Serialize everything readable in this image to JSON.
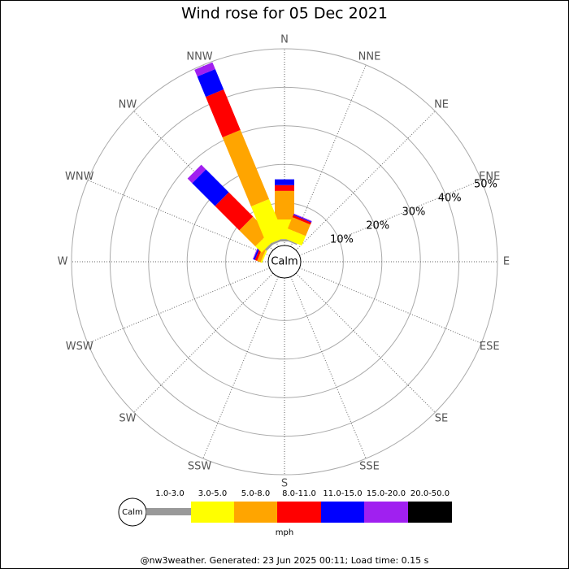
{
  "chart_data": {
    "type": "windrose",
    "title": "Wind rose for 05 Dec 2021",
    "directions": [
      "N",
      "NNE",
      "NE",
      "ENE",
      "E",
      "ESE",
      "SE",
      "SSE",
      "S",
      "SSW",
      "SW",
      "WSW",
      "W",
      "WNW",
      "NW",
      "NNW"
    ],
    "center_label": "Calm",
    "unit_label": "mph",
    "rlim": [
      0,
      50
    ],
    "rticks": [
      {
        "value": 10,
        "label": "10%"
      },
      {
        "value": 20,
        "label": "20%"
      },
      {
        "value": 30,
        "label": "30%"
      },
      {
        "value": 40,
        "label": "40%"
      },
      {
        "value": 50,
        "label": "50%"
      }
    ],
    "series": [
      {
        "name": "1.0-3.0",
        "color": "#999999",
        "values": [
          0.6,
          0.3,
          0,
          0,
          0,
          0,
          0,
          0,
          0,
          0,
          0,
          0,
          0,
          0,
          0.6,
          0.5
        ]
      },
      {
        "name": "3.0-5.0",
        "color": "#ffff00",
        "values": [
          5.1,
          2.7,
          0,
          0,
          0,
          0,
          0,
          0,
          0,
          0,
          0,
          0,
          0,
          0.4,
          2.3,
          10.8
        ]
      },
      {
        "name": "5.0-8.0",
        "color": "#ffa500",
        "values": [
          7.4,
          3.2,
          0,
          0,
          0,
          0,
          0,
          0,
          0,
          0,
          0,
          0,
          0,
          1.0,
          5.9,
          19.4
        ]
      },
      {
        "name": "8.0-11.0",
        "color": "#ff0000",
        "values": [
          1.5,
          0.6,
          0,
          0,
          0,
          0,
          0,
          0,
          0,
          0,
          0,
          0,
          0,
          0.6,
          8.9,
          11.4
        ]
      },
      {
        "name": "11.0-15.0",
        "color": "#0000ff",
        "values": [
          1.5,
          0.2,
          0,
          0,
          0,
          0,
          0,
          0,
          0,
          0,
          0,
          0,
          0,
          0.4,
          8.4,
          5.7
        ]
      },
      {
        "name": "15.0-20.0",
        "color": "#a020f0",
        "values": [
          0,
          0.2,
          0,
          0,
          0,
          0,
          0,
          0,
          0,
          0,
          0,
          0,
          0,
          0.2,
          1.7,
          1.9
        ]
      },
      {
        "name": "20.0-50.0",
        "color": "#000000",
        "values": [
          0,
          0,
          0,
          0,
          0,
          0,
          0,
          0,
          0,
          0,
          0,
          0,
          0,
          0,
          0,
          0
        ]
      }
    ],
    "footer": "@nw3weather. Generated: 23 Jun 2025 00:11; Load time: 0.15 s"
  }
}
